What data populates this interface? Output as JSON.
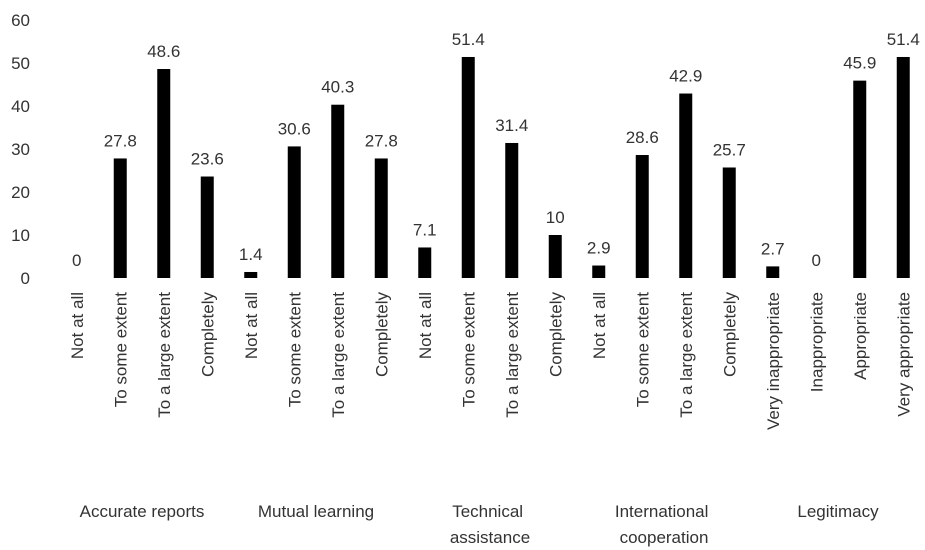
{
  "chart_data": {
    "type": "bar",
    "color": "#000000",
    "ylim": [
      0,
      60
    ],
    "yticks": [
      0,
      10,
      20,
      30,
      40,
      50,
      60
    ],
    "grid": false,
    "groups": [
      {
        "name": "Accurate reports",
        "categories": [
          "Not at all",
          "To some extent",
          "To a large extent",
          "Completely"
        ],
        "values": [
          0,
          27.8,
          48.6,
          23.6
        ]
      },
      {
        "name": "Mutual learning",
        "categories": [
          "Not at all",
          "To some extent",
          "To a large extent",
          "Completely"
        ],
        "values": [
          1.4,
          30.6,
          40.3,
          27.8
        ]
      },
      {
        "name": "Technical assistance",
        "categories": [
          "Not at all",
          "To some extent",
          "To a large extent",
          "Completely"
        ],
        "values": [
          7.1,
          51.4,
          31.4,
          10
        ]
      },
      {
        "name": "International cooperation",
        "categories": [
          "Not at all",
          "To some extent",
          "To a large extent",
          "Completely"
        ],
        "values": [
          2.9,
          28.6,
          42.9,
          25.7
        ]
      },
      {
        "name": "Legitimacy",
        "categories": [
          "Very inappropriate",
          "Inappropriate",
          "Appropriate",
          "Very appropriate"
        ],
        "values": [
          2.7,
          0,
          45.9,
          51.4
        ]
      }
    ]
  }
}
